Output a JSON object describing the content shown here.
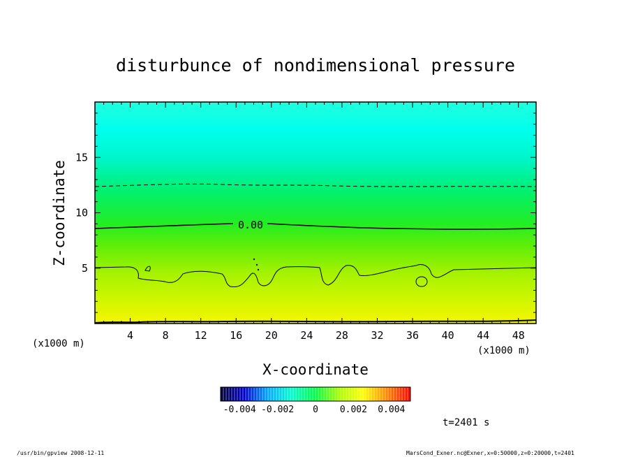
{
  "chart_data": {
    "type": "heatmap",
    "title": "disturbunce of nondimensional pressure",
    "xlabel": "X-coordinate",
    "ylabel": "Z-coordinate",
    "x_unit_left": "(x1000 m)",
    "x_unit_right": "(x1000 m)",
    "xlim": [
      0,
      50
    ],
    "ylim": [
      0,
      20
    ],
    "xticks": [
      4,
      8,
      12,
      16,
      20,
      24,
      28,
      32,
      36,
      40,
      44,
      48
    ],
    "yticks": [
      5,
      10,
      15
    ],
    "contour_labels": [
      {
        "text": "0.00",
        "x": 17.5,
        "z": 8.9
      }
    ],
    "colorbar": {
      "min": -0.005,
      "max": 0.005,
      "tick_labels": [
        "-0.004",
        "-0.002",
        "0",
        "0.002",
        "0.004"
      ],
      "colors": [
        "#000033",
        "#0000cc",
        "#00aaff",
        "#00ffcc",
        "#00ff44",
        "#aaff00",
        "#ffff00",
        "#ff8800",
        "#ff0000"
      ]
    },
    "field_colors_by_height": [
      {
        "z": 0,
        "color": "#f5f500"
      },
      {
        "z": 2,
        "color": "#d2f700"
      },
      {
        "z": 4.5,
        "color": "#a6f200"
      },
      {
        "z": 7,
        "color": "#60ee08"
      },
      {
        "z": 9,
        "color": "#22ee22"
      },
      {
        "z": 12,
        "color": "#00f070"
      },
      {
        "z": 15,
        "color": "#00f6cc"
      },
      {
        "z": 17.5,
        "color": "#00ffee"
      },
      {
        "z": 20,
        "color": "#22ffdd"
      }
    ],
    "grid": false
  },
  "time_label": "t=2401 s",
  "footer": {
    "left": "/usr/bin/gpview   2008-12-11",
    "right": "MarsCond_Exner.nc@Exner,x=0:50000,z=0:20000,t=2401"
  }
}
